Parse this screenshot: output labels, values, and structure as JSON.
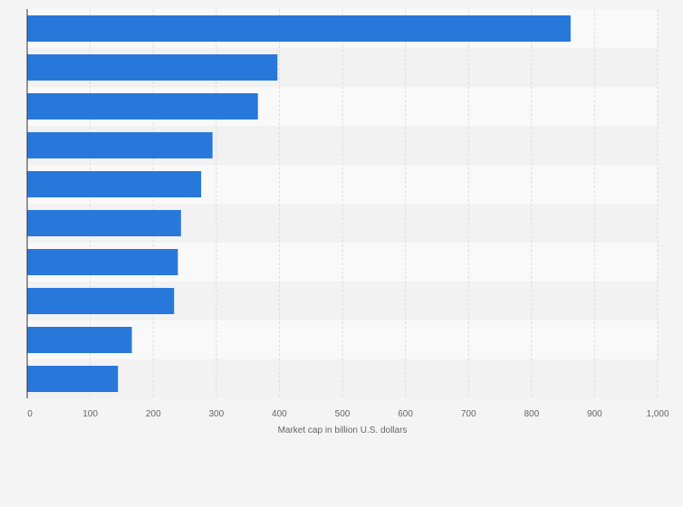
{
  "chart_data": {
    "type": "bar",
    "orientation": "horizontal",
    "title": "",
    "xlabel": "Market cap in billion U.S. dollars",
    "ylabel": "",
    "xlim": [
      0,
      1000
    ],
    "x_ticks": [
      0,
      100,
      200,
      300,
      400,
      500,
      600,
      700,
      800,
      900,
      1000
    ],
    "x_tick_labels": [
      "0",
      "100",
      "200",
      "300",
      "400",
      "500",
      "600",
      "700",
      "800",
      "900",
      "1,000"
    ],
    "categories": [
      "",
      "",
      "",
      "",
      "",
      "",
      "",
      "",
      "",
      ""
    ],
    "values": [
      862,
      397,
      366,
      294,
      276,
      244,
      239,
      233,
      166,
      144
    ],
    "grid": true,
    "legend": "none",
    "colors": {
      "bar": "#2878dc",
      "band_light": "#f9f9f9",
      "band_dark": "#f2f2f2",
      "gridline": "#dddddd",
      "axis": "#333333",
      "text": "#666666",
      "background": "#f4f4f4"
    }
  }
}
